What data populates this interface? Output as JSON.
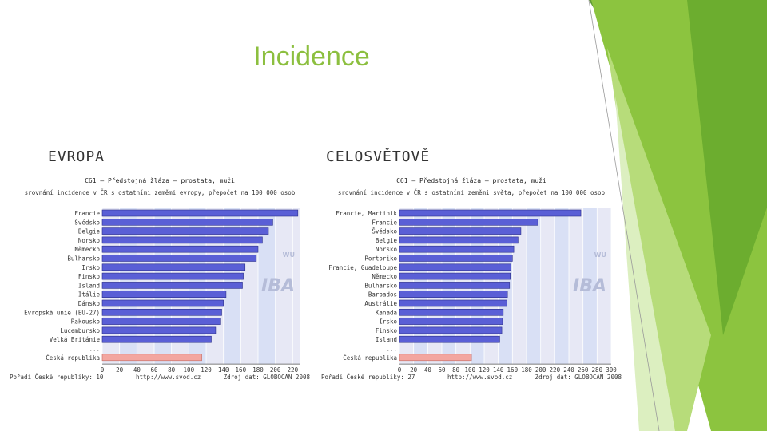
{
  "slide": {
    "title": "Incidence"
  },
  "colors": {
    "accent": "#8cbf3f",
    "bar": "#5a5fd6",
    "highlight": "#f3a6a0",
    "plot_bg": "#e7e8f5",
    "band": "#cdd8f4"
  },
  "left_label": "EVROPA",
  "right_label": "CELOSVĚTOVĚ",
  "chart_data": [
    {
      "type": "bar",
      "orientation": "horizontal",
      "title": "C61 – Předstojná žláza – prostata, muži",
      "subtitle": "srovnání incidence v ČR s ostatními zeměmi evropy, přepočet na 100 000 osob",
      "categories": [
        "Francie",
        "Švédsko",
        "Belgie",
        "Norsko",
        "Německo",
        "Bulharsko",
        "Irsko",
        "Finsko",
        "Island",
        "Itálie",
        "Dánsko",
        "Evropská unie (EU-27)",
        "Rakousko",
        "Lucembursko",
        "Velká Británie",
        "...",
        "Česká republika"
      ],
      "values": [
        226,
        197,
        192,
        185,
        180,
        178,
        165,
        163,
        162,
        143,
        140,
        138,
        136,
        131,
        126,
        null,
        115
      ],
      "highlight": "Česká republika",
      "xticks": [
        "0",
        "20",
        "40",
        "60",
        "80",
        "100",
        "120",
        "140",
        "160",
        "180",
        "200",
        "220"
      ],
      "xlim": [
        0,
        228
      ],
      "footer_left": "Pořadí České republiky: 10",
      "footer_mid": "http://www.svod.cz",
      "footer_right": "Zdroj dat: GLOBOCAN 2008",
      "watermark": [
        "WU",
        "IBA"
      ]
    },
    {
      "type": "bar",
      "orientation": "horizontal",
      "title": "C61 – Předstojná žláza – prostata, muži",
      "subtitle": "srovnání incidence v ČR s ostatními zeměmi světa, přepočet na 100 000 osob",
      "categories": [
        "Francie, Martinik",
        "Francie",
        "Švédsko",
        "Belgie",
        "Norsko",
        "Portoriko",
        "Francie, Guadeloupe",
        "Německo",
        "Bulharsko",
        "Barbados",
        "Austrálie",
        "Kanada",
        "Irsko",
        "Finsko",
        "Island",
        "...",
        "Česká republika"
      ],
      "values": [
        257,
        196,
        172,
        168,
        162,
        160,
        158,
        157,
        156,
        153,
        152,
        147,
        146,
        145,
        142,
        null,
        102
      ],
      "highlight": "Česká republika",
      "xticks": [
        "0",
        "20",
        "40",
        "60",
        "80",
        "100",
        "120",
        "140",
        "160",
        "180",
        "200",
        "220",
        "240",
        "260",
        "280",
        "300"
      ],
      "xlim": [
        0,
        300
      ],
      "footer_left": "Pořadí České republiky: 27",
      "footer_mid": "http://www.svod.cz",
      "footer_right": "Zdroj dat: GLOBOCAN 2008",
      "watermark": [
        "WU",
        "IBA"
      ]
    }
  ]
}
